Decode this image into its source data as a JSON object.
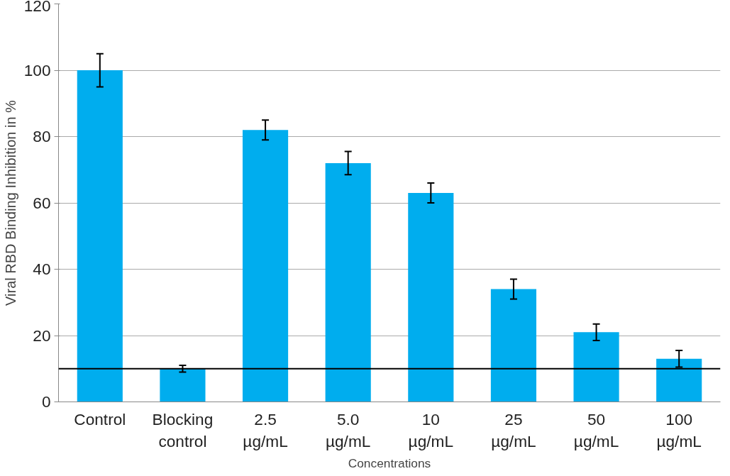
{
  "chart_data": {
    "type": "bar",
    "xlabel": "Concentrations",
    "ylabel": "Viral RBD Binding Inhibition in %",
    "categories": [
      "Control",
      "Blocking\ncontrol",
      "2.5\nµg/mL",
      "5.0\nµg/mL",
      "10\nµg/mL",
      "25\nµg/mL",
      "50\nµg/mL",
      "100\nµg/mL"
    ],
    "values": [
      100,
      10,
      82,
      72,
      63,
      34,
      21,
      13
    ],
    "errors": [
      5,
      1,
      3,
      3.5,
      3,
      3,
      2.5,
      2.5
    ],
    "color": "#00adee",
    "ylim": [
      0,
      120
    ],
    "yticks": [
      0,
      20,
      40,
      60,
      80,
      100,
      120
    ],
    "grid": "y",
    "ref_lines": [
      {
        "axis": "y",
        "value": 10,
        "color": "#000000"
      }
    ]
  }
}
